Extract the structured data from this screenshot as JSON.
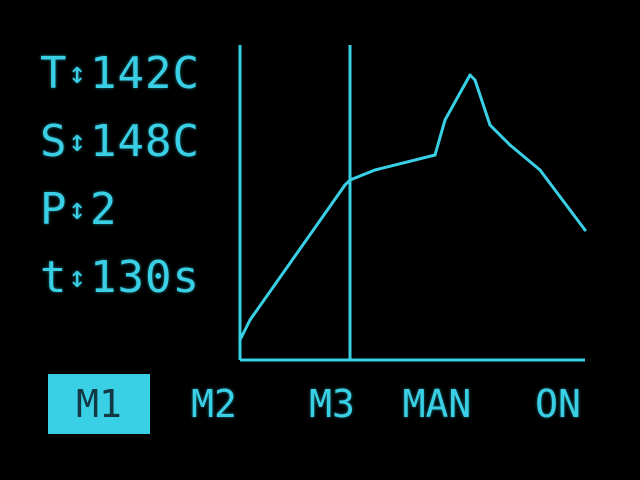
{
  "readouts": [
    {
      "label": "T",
      "arrow": "↕",
      "value": "142C"
    },
    {
      "label": "S",
      "arrow": "↕",
      "value": "148C"
    },
    {
      "label": "P",
      "arrow": "↕",
      "value": "2"
    },
    {
      "label": "t",
      "arrow": "↕",
      "value": "130s"
    }
  ],
  "menu": {
    "items": [
      {
        "label": "M1",
        "selected": true
      },
      {
        "label": "M2",
        "selected": false
      },
      {
        "label": "M3",
        "selected": false
      },
      {
        "label": "MAN",
        "selected": false
      },
      {
        "label": "ON",
        "selected": false
      }
    ]
  },
  "colors": {
    "foreground": "#39d0e6",
    "background": "#000000",
    "selected_text": "#123844"
  },
  "chart_data": {
    "type": "line",
    "title": "",
    "xlabel": "",
    "ylabel": "",
    "grid": false,
    "cursor": {
      "x": 110
    },
    "series": [
      {
        "x": [
          0,
          10,
          105,
          110,
          135,
          195,
          205,
          230,
          235,
          250,
          270,
          300,
          345
        ],
        "y": [
          20,
          40,
          175,
          180,
          190,
          205,
          240,
          285,
          280,
          235,
          215,
          190,
          130
        ]
      }
    ],
    "xlim": [
      0,
      345
    ],
    "ylim": [
      0,
      300
    ]
  }
}
